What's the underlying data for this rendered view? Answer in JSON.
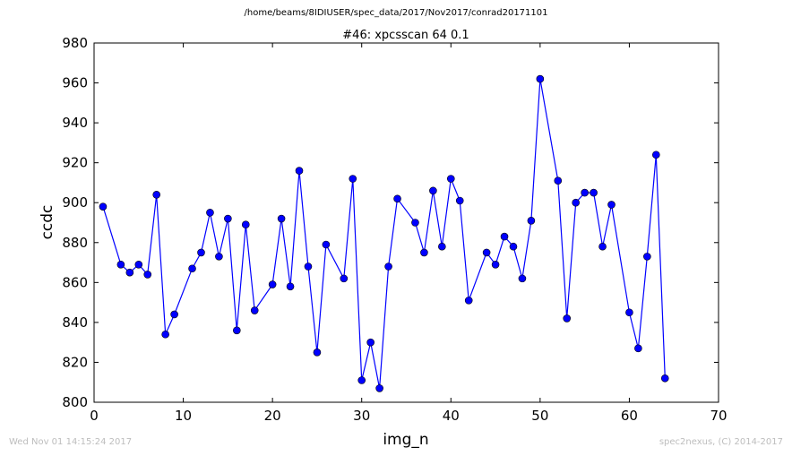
{
  "supertitle": "/home/beams/8IDIUSER/spec_data/2017/Nov2017/conrad20171101",
  "footer": {
    "timestamp": "Wed Nov 01 14:15:24 2017",
    "credit": "spec2nexus, (C) 2014-2017"
  },
  "chart_data": {
    "type": "line",
    "title": "#46: xpcsscan 64 0.1",
    "xlabel": "img_n",
    "ylabel": "ccdc",
    "xlim": [
      0,
      70
    ],
    "ylim": [
      800,
      980
    ],
    "xticks": [
      0,
      10,
      20,
      30,
      40,
      50,
      60,
      70
    ],
    "yticks": [
      800,
      820,
      840,
      860,
      880,
      900,
      920,
      940,
      960,
      980
    ],
    "grid": false,
    "line_color": "#0000ff",
    "marker_color": "#0000ff",
    "series": [
      {
        "x": [
          1,
          3,
          4,
          5,
          6,
          7,
          8,
          9,
          11,
          12,
          13,
          14,
          15,
          16,
          17,
          18,
          20,
          21,
          22,
          23,
          24,
          25,
          26,
          28,
          29,
          30,
          31,
          32,
          33,
          34,
          36,
          37,
          38,
          39,
          40,
          41,
          42,
          44,
          45,
          46,
          47,
          48,
          49,
          50,
          52,
          53,
          54,
          55,
          56,
          57,
          58,
          60,
          61,
          62,
          63,
          64
        ],
        "y": [
          898,
          869,
          865,
          869,
          864,
          904,
          834,
          844,
          867,
          875,
          895,
          873,
          892,
          836,
          889,
          846,
          859,
          892,
          858,
          916,
          868,
          825,
          879,
          862,
          912,
          811,
          830,
          807,
          868,
          902,
          890,
          875,
          906,
          878,
          912,
          901,
          851,
          875,
          869,
          883,
          878,
          862,
          891,
          962,
          911,
          842,
          900,
          905,
          905,
          878,
          899,
          845,
          827,
          873,
          924,
          812
        ]
      }
    ]
  }
}
